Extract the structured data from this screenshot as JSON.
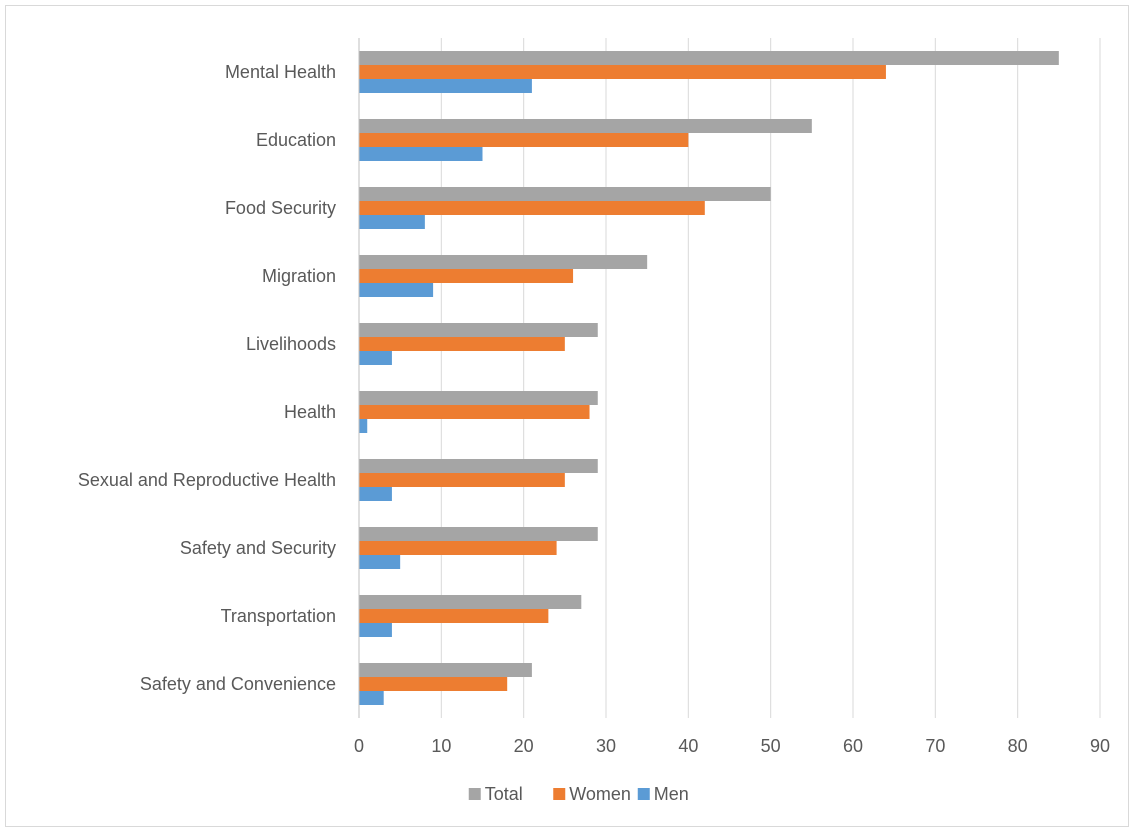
{
  "chart_data": {
    "type": "bar",
    "orientation": "horizontal",
    "categories": [
      "Mental Health",
      "Education",
      "Food Security",
      "Migration",
      "Livelihoods",
      "Health",
      "Sexual and Reproductive Health",
      "Safety and Security",
      "Transportation",
      "Safety and Convenience"
    ],
    "series": [
      {
        "name": "Total",
        "color": "#a5a5a5",
        "values": [
          85,
          55,
          50,
          35,
          29,
          29,
          29,
          29,
          27,
          21
        ]
      },
      {
        "name": "Women",
        "color": "#ed7d31",
        "values": [
          64,
          40,
          42,
          26,
          25,
          28,
          25,
          24,
          23,
          18
        ]
      },
      {
        "name": "Men",
        "color": "#5b9bd5",
        "values": [
          21,
          15,
          8,
          9,
          4,
          1,
          4,
          5,
          4,
          3
        ]
      }
    ],
    "xlim": [
      0,
      90
    ],
    "x_ticks": [
      "0",
      "10",
      "20",
      "30",
      "40",
      "50",
      "60",
      "70",
      "80",
      "90"
    ],
    "grid": true,
    "legend_position": "bottom",
    "title": "",
    "xlabel": "",
    "ylabel": ""
  }
}
